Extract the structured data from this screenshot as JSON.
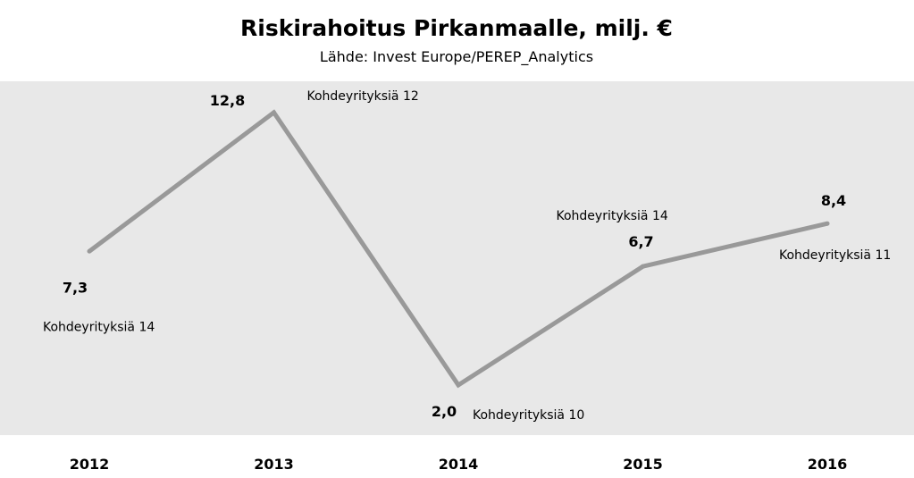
{
  "chart_data": {
    "type": "line",
    "title": "Riskirahoitus Pirkanmaalle, milj. €",
    "subtitle": "Lähde: Invest Europe/PEREP_Analytics",
    "xlabel": "",
    "ylabel": "",
    "categories": [
      "2012",
      "2013",
      "2014",
      "2015",
      "2016"
    ],
    "series": [
      {
        "values": [
          7.3,
          12.8,
          2.0,
          6.7,
          8.4
        ],
        "color": "#999999"
      }
    ],
    "value_labels": [
      "7,3",
      "12,8",
      "2,0",
      "6,7",
      "8,4"
    ],
    "annotations": [
      "Kohdeyrityksiä 14",
      "Kohdeyrityksiä 12",
      "Kohdeyrityksiä 10",
      "Kohdeyrityksiä 14",
      "Kohdeyrityksiä 11"
    ],
    "ylim": [
      0,
      14
    ],
    "grid": false,
    "legend": "none",
    "plot_background": "#e8e8e8"
  }
}
